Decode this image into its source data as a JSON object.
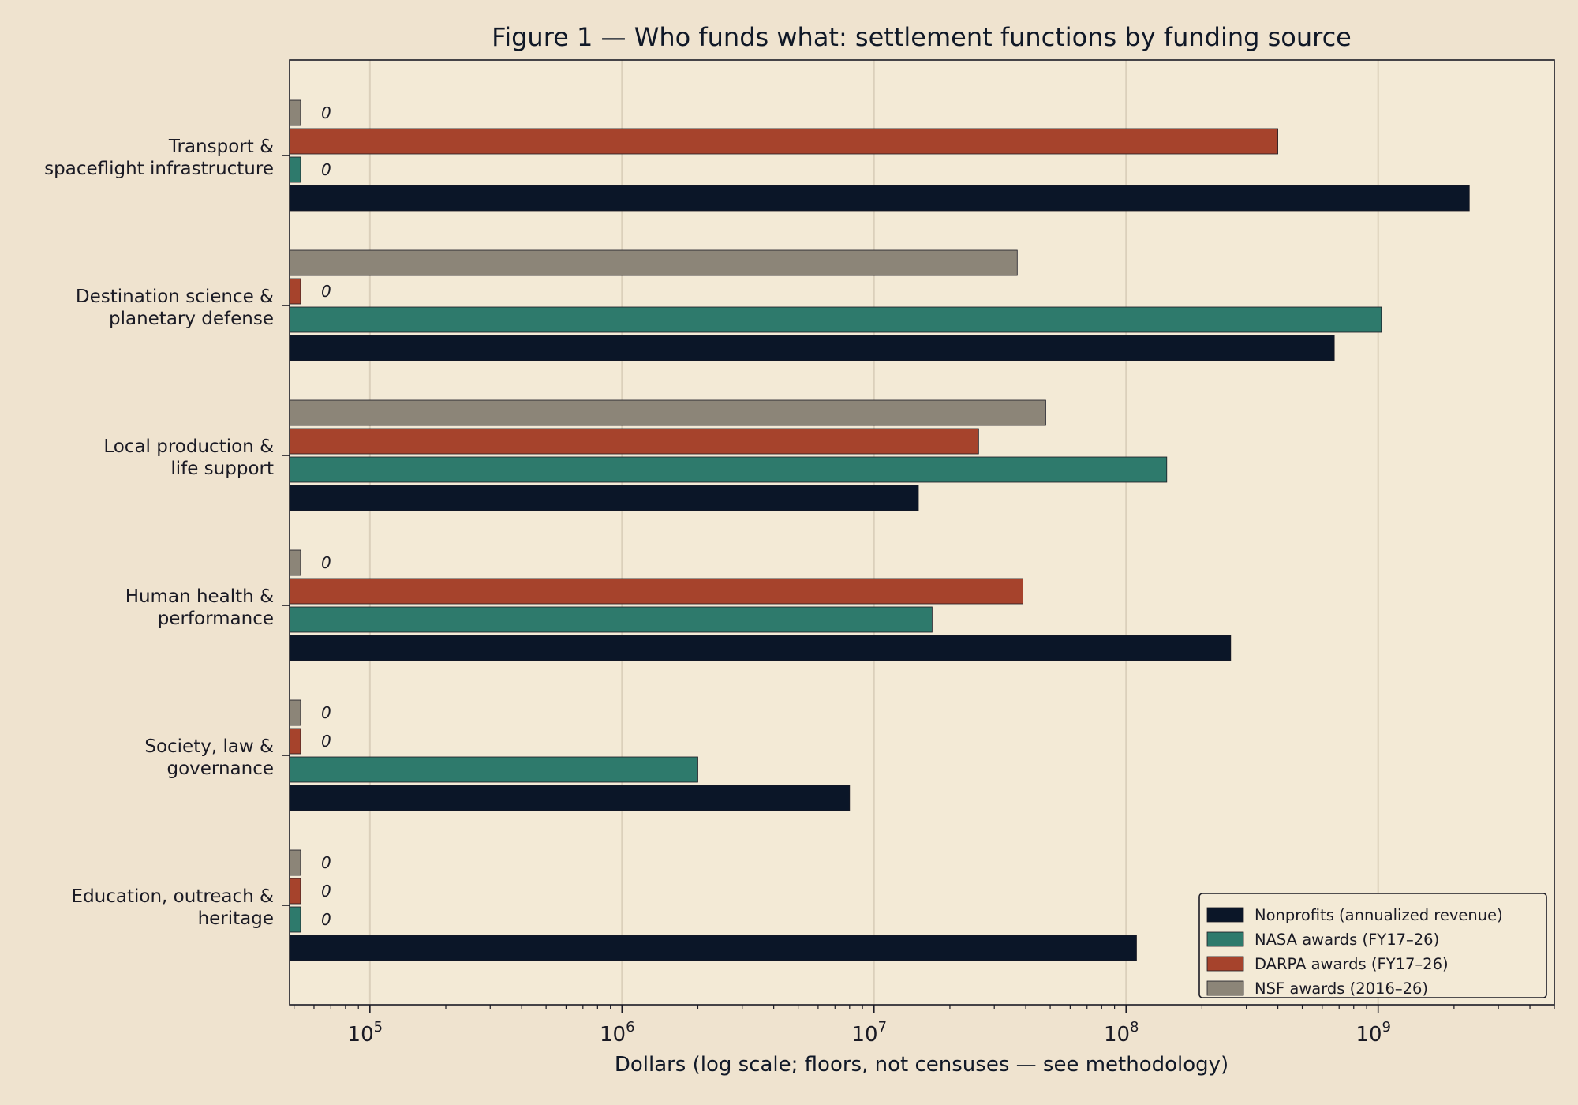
{
  "chart_data": {
    "type": "bar",
    "orientation": "horizontal",
    "title": "Figure 1 — Who funds what: settlement functions by funding source",
    "xlabel": "Dollars (log scale; floors, not censuses — see methodology)",
    "x_scale": "log",
    "xlim": [
      48000,
      5000000000
    ],
    "x_ticks": [
      {
        "value": 100000,
        "base": "10",
        "exp": "5"
      },
      {
        "value": 1000000,
        "base": "10",
        "exp": "6"
      },
      {
        "value": 10000000,
        "base": "10",
        "exp": "7"
      },
      {
        "value": 100000000,
        "base": "10",
        "exp": "8"
      },
      {
        "value": 1000000000,
        "base": "10",
        "exp": "9"
      }
    ],
    "grid": "vertical major gridlines",
    "legend_position": "lower-right",
    "zero_label": "0",
    "categories": [
      [
        "Transport &",
        "spaceflight infrastructure"
      ],
      [
        "Destination science &",
        "planetary defense"
      ],
      [
        "Local production &",
        "life support"
      ],
      [
        "Human health &",
        "performance"
      ],
      [
        "Society, law &",
        "governance"
      ],
      [
        "Education, outreach &",
        "heritage"
      ]
    ],
    "series": [
      {
        "name": "Nonprofits (annualized revenue)",
        "color": "#0b1628",
        "values": [
          2300000000,
          670000000,
          15000000,
          260000000,
          8000000,
          110000000
        ]
      },
      {
        "name": "NASA awards (FY17–26)",
        "color": "#2e7a6c",
        "values": [
          0,
          1030000000,
          145000000,
          17000000,
          2000000,
          0
        ]
      },
      {
        "name": "DARPA awards (FY17–26)",
        "color": "#a6432c",
        "values": [
          400000000,
          0,
          26000000,
          39000000,
          0,
          0
        ]
      },
      {
        "name": "NSF awards (2016–26)",
        "color": "#8c8578",
        "values": [
          0,
          37000000,
          48000000,
          0,
          0,
          0
        ]
      }
    ]
  }
}
